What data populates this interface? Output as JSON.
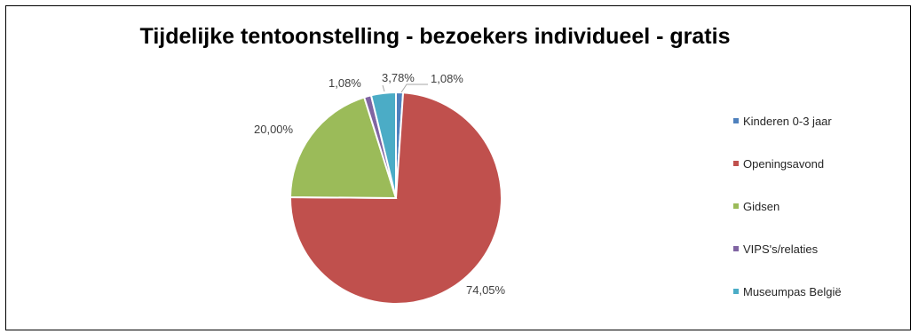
{
  "chart_data": {
    "type": "pie",
    "title": "Tijdelijke tentoonstelling - bezoekers individueel - gratis",
    "slices": [
      {
        "name": "Kinderen 0-3 jaar",
        "value": 1.08,
        "label": "1,08%",
        "color": "#4F81BD"
      },
      {
        "name": "Openingsavond",
        "value": 74.05,
        "label": "74,05%",
        "color": "#C0504D"
      },
      {
        "name": "Gidsen",
        "value": 20.0,
        "label": "20,00%",
        "color": "#9BBB59"
      },
      {
        "name": "VIPS's/relaties",
        "value": 1.08,
        "label": "1,08%",
        "color": "#8064A2"
      },
      {
        "name": "Museumpas België",
        "value": 3.78,
        "label": "3,78%",
        "color": "#4BACC6"
      }
    ],
    "start_angle": "12 o'clock",
    "direction": "clockwise",
    "legend": "right",
    "grid": false
  }
}
